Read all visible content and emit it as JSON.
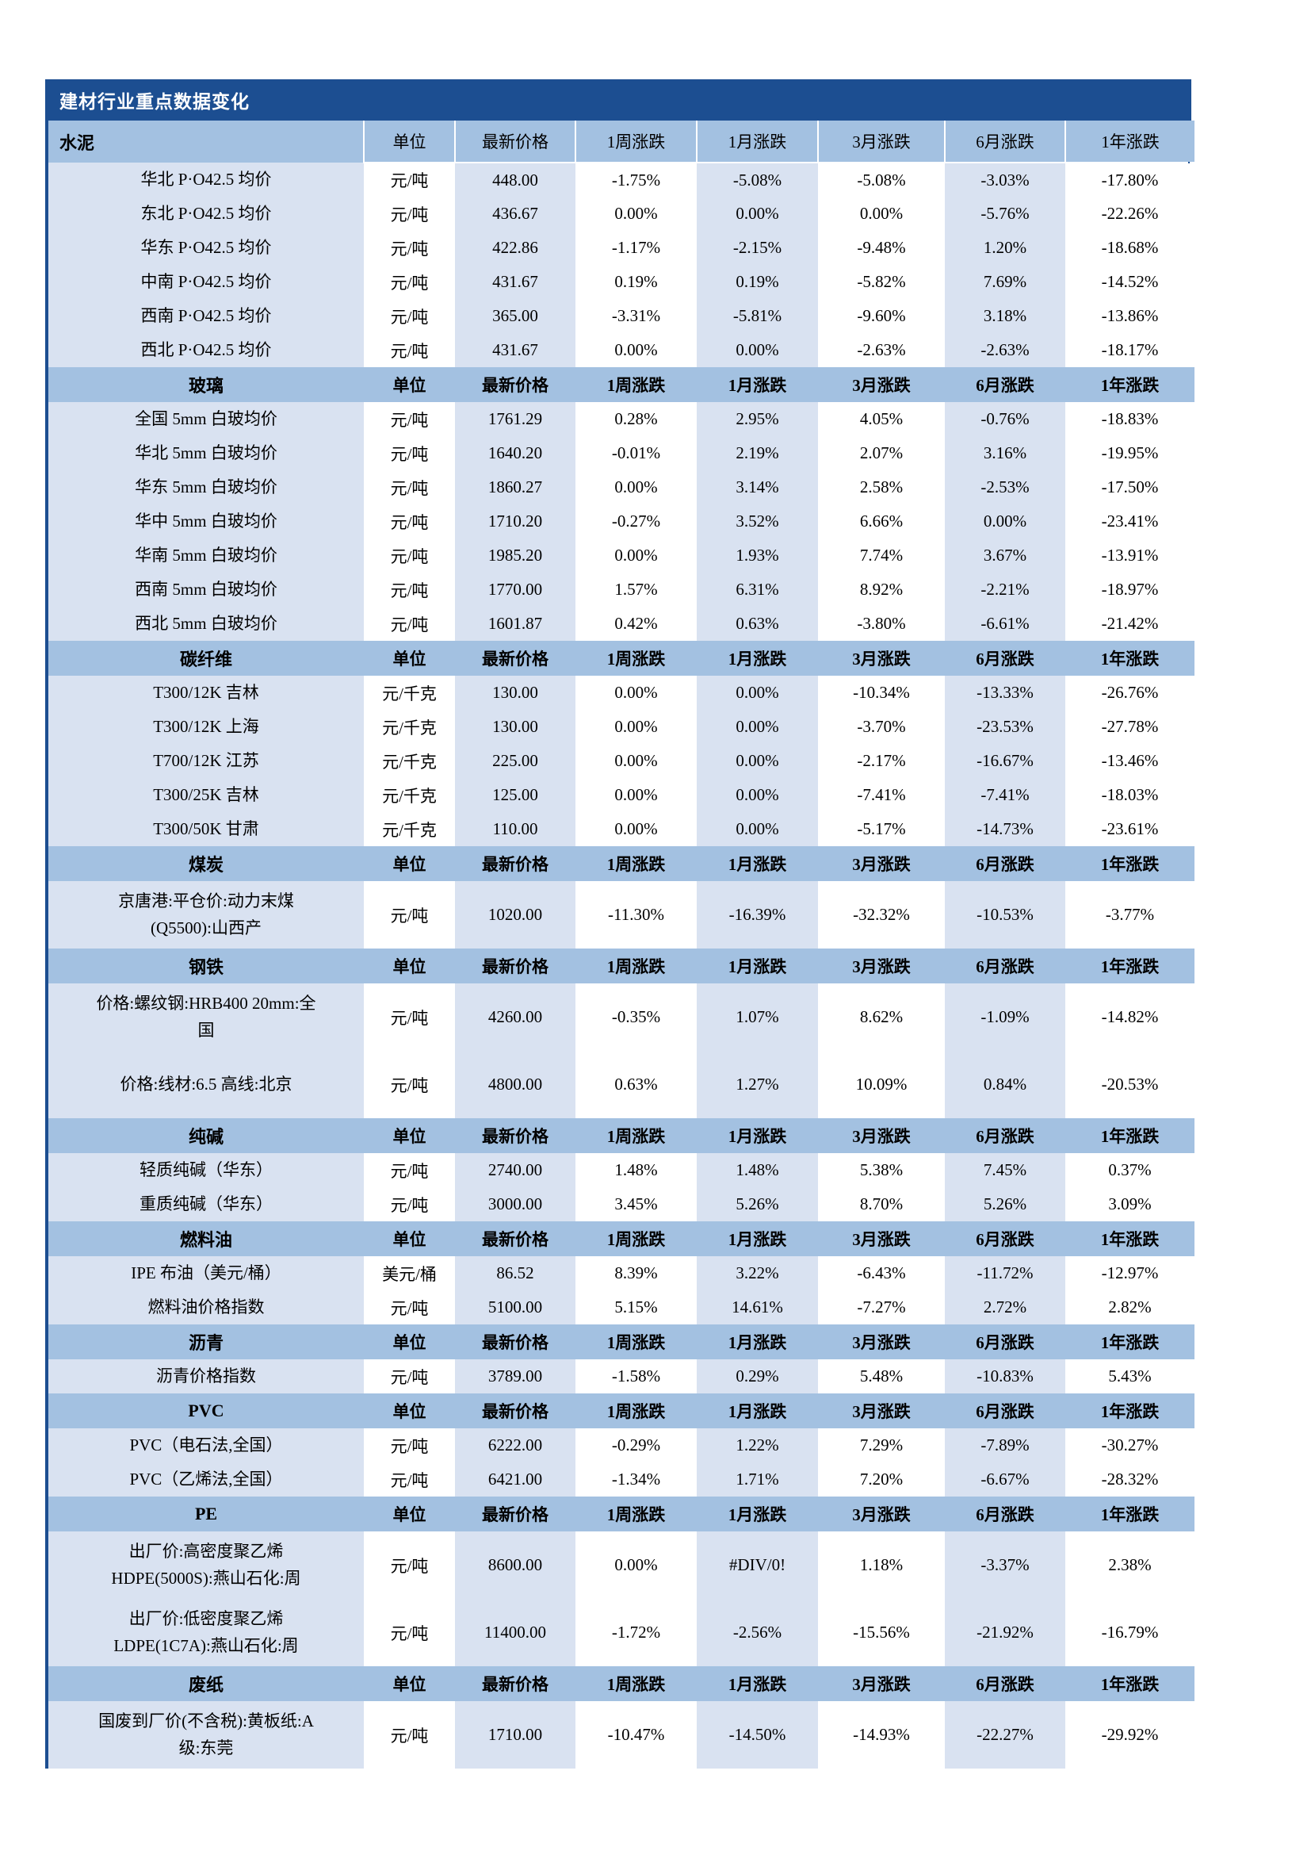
{
  "table": {
    "title": "建材行业重点数据变化",
    "colors": {
      "title_bar": "#1C4E91",
      "section_header_row": "#A3C1E1",
      "cell_light_blue": "#D9E2F1",
      "cell_white": "#FFFFFF",
      "side_border": "#1C4E91",
      "text": "#000000",
      "title_text": "#FFFFFF"
    },
    "col_headers": [
      "单位",
      "最新价格",
      "1周涨跌",
      "1月涨跌",
      "3月涨跌",
      "6月涨跌",
      "1年涨跌"
    ],
    "sections": [
      {
        "name": "水泥",
        "rows": [
          {
            "name": "华北 P·O42.5 均价",
            "unit": "元/吨",
            "price": "448.00",
            "w1": "-1.75%",
            "m1": "-5.08%",
            "m3": "-5.08%",
            "m6": "-3.03%",
            "y1": "-17.80%"
          },
          {
            "name": "东北 P·O42.5 均价",
            "unit": "元/吨",
            "price": "436.67",
            "w1": "0.00%",
            "m1": "0.00%",
            "m3": "0.00%",
            "m6": "-5.76%",
            "y1": "-22.26%"
          },
          {
            "name": "华东 P·O42.5 均价",
            "unit": "元/吨",
            "price": "422.86",
            "w1": "-1.17%",
            "m1": "-2.15%",
            "m3": "-9.48%",
            "m6": "1.20%",
            "y1": "-18.68%"
          },
          {
            "name": "中南 P·O42.5 均价",
            "unit": "元/吨",
            "price": "431.67",
            "w1": "0.19%",
            "m1": "0.19%",
            "m3": "-5.82%",
            "m6": "7.69%",
            "y1": "-14.52%"
          },
          {
            "name": "西南 P·O42.5 均价",
            "unit": "元/吨",
            "price": "365.00",
            "w1": "-3.31%",
            "m1": "-5.81%",
            "m3": "-9.60%",
            "m6": "3.18%",
            "y1": "-13.86%"
          },
          {
            "name": "西北 P·O42.5 均价",
            "unit": "元/吨",
            "price": "431.67",
            "w1": "0.00%",
            "m1": "0.00%",
            "m3": "-2.63%",
            "m6": "-2.63%",
            "y1": "-18.17%"
          }
        ]
      },
      {
        "name": "玻璃",
        "rows": [
          {
            "name": "全国 5mm 白玻均价",
            "unit": "元/吨",
            "price": "1761.29",
            "w1": "0.28%",
            "m1": "2.95%",
            "m3": "4.05%",
            "m6": "-0.76%",
            "y1": "-18.83%"
          },
          {
            "name": "华北 5mm 白玻均价",
            "unit": "元/吨",
            "price": "1640.20",
            "w1": "-0.01%",
            "m1": "2.19%",
            "m3": "2.07%",
            "m6": "3.16%",
            "y1": "-19.95%"
          },
          {
            "name": "华东 5mm 白玻均价",
            "unit": "元/吨",
            "price": "1860.27",
            "w1": "0.00%",
            "m1": "3.14%",
            "m3": "2.58%",
            "m6": "-2.53%",
            "y1": "-17.50%"
          },
          {
            "name": "华中 5mm 白玻均价",
            "unit": "元/吨",
            "price": "1710.20",
            "w1": "-0.27%",
            "m1": "3.52%",
            "m3": "6.66%",
            "m6": "0.00%",
            "y1": "-23.41%"
          },
          {
            "name": "华南 5mm 白玻均价",
            "unit": "元/吨",
            "price": "1985.20",
            "w1": "0.00%",
            "m1": "1.93%",
            "m3": "7.74%",
            "m6": "3.67%",
            "y1": "-13.91%"
          },
          {
            "name": "西南 5mm 白玻均价",
            "unit": "元/吨",
            "price": "1770.00",
            "w1": "1.57%",
            "m1": "6.31%",
            "m3": "8.92%",
            "m6": "-2.21%",
            "y1": "-18.97%"
          },
          {
            "name": "西北 5mm 白玻均价",
            "unit": "元/吨",
            "price": "1601.87",
            "w1": "0.42%",
            "m1": "0.63%",
            "m3": "-3.80%",
            "m6": "-6.61%",
            "y1": "-21.42%"
          }
        ]
      },
      {
        "name": "碳纤维",
        "rows": [
          {
            "name": "T300/12K 吉林",
            "unit": "元/千克",
            "price": "130.00",
            "w1": "0.00%",
            "m1": "0.00%",
            "m3": "-10.34%",
            "m6": "-13.33%",
            "y1": "-26.76%"
          },
          {
            "name": "T300/12K 上海",
            "unit": "元/千克",
            "price": "130.00",
            "w1": "0.00%",
            "m1": "0.00%",
            "m3": "-3.70%",
            "m6": "-23.53%",
            "y1": "-27.78%"
          },
          {
            "name": "T700/12K 江苏",
            "unit": "元/千克",
            "price": "225.00",
            "w1": "0.00%",
            "m1": "0.00%",
            "m3": "-2.17%",
            "m6": "-16.67%",
            "y1": "-13.46%"
          },
          {
            "name": "T300/25K 吉林",
            "unit": "元/千克",
            "price": "125.00",
            "w1": "0.00%",
            "m1": "0.00%",
            "m3": "-7.41%",
            "m6": "-7.41%",
            "y1": "-18.03%"
          },
          {
            "name": "T300/50K 甘肃",
            "unit": "元/千克",
            "price": "110.00",
            "w1": "0.00%",
            "m1": "0.00%",
            "m3": "-5.17%",
            "m6": "-14.73%",
            "y1": "-23.61%"
          }
        ]
      },
      {
        "name": "煤炭",
        "rows": [
          {
            "name": "京唐港:平仓价:动力末煤\n(Q5500):山西产",
            "tall": true,
            "unit": "元/吨",
            "price": "1020.00",
            "w1": "-11.30%",
            "m1": "-16.39%",
            "m3": "-32.32%",
            "m6": "-10.53%",
            "y1": "-3.77%"
          }
        ]
      },
      {
        "name": "钢铁",
        "rows": [
          {
            "name": "价格:螺纹钢:HRB400 20mm:全\n国",
            "tall": true,
            "unit": "元/吨",
            "price": "4260.00",
            "w1": "-0.35%",
            "m1": "1.07%",
            "m3": "8.62%",
            "m6": "-1.09%",
            "y1": "-14.82%"
          },
          {
            "name": "价格:线材:6.5 高线:北京",
            "tall": true,
            "unit": "元/吨",
            "price": "4800.00",
            "w1": "0.63%",
            "m1": "1.27%",
            "m3": "10.09%",
            "m6": "0.84%",
            "y1": "-20.53%"
          }
        ]
      },
      {
        "name": "纯碱",
        "rows": [
          {
            "name": "轻质纯碱（华东）",
            "unit": "元/吨",
            "price": "2740.00",
            "w1": "1.48%",
            "m1": "1.48%",
            "m3": "5.38%",
            "m6": "7.45%",
            "y1": "0.37%"
          },
          {
            "name": "重质纯碱（华东）",
            "unit": "元/吨",
            "price": "3000.00",
            "w1": "3.45%",
            "m1": "5.26%",
            "m3": "8.70%",
            "m6": "5.26%",
            "y1": "3.09%"
          }
        ]
      },
      {
        "name": "燃料油",
        "rows": [
          {
            "name": "IPE 布油（美元/桶）",
            "unit": "美元/桶",
            "price": "86.52",
            "w1": "8.39%",
            "m1": "3.22%",
            "m3": "-6.43%",
            "m6": "-11.72%",
            "y1": "-12.97%"
          },
          {
            "name": "燃料油价格指数",
            "unit": "元/吨",
            "price": "5100.00",
            "w1": "5.15%",
            "m1": "14.61%",
            "m3": "-7.27%",
            "m6": "2.72%",
            "y1": "2.82%"
          }
        ]
      },
      {
        "name": "沥青",
        "rows": [
          {
            "name": "沥青价格指数",
            "unit": "元/吨",
            "price": "3789.00",
            "w1": "-1.58%",
            "m1": "0.29%",
            "m3": "5.48%",
            "m6": "-10.83%",
            "y1": "5.43%"
          }
        ]
      },
      {
        "name": "PVC",
        "rows": [
          {
            "name": "PVC（电石法,全国）",
            "unit": "元/吨",
            "price": "6222.00",
            "w1": "-0.29%",
            "m1": "1.22%",
            "m3": "7.29%",
            "m6": "-7.89%",
            "y1": "-30.27%"
          },
          {
            "name": "PVC（乙烯法,全国）",
            "unit": "元/吨",
            "price": "6421.00",
            "w1": "-1.34%",
            "m1": "1.71%",
            "m3": "7.20%",
            "m6": "-6.67%",
            "y1": "-28.32%"
          }
        ]
      },
      {
        "name": "PE",
        "rows": [
          {
            "name": "出厂价:高密度聚乙烯\nHDPE(5000S):燕山石化:周",
            "tall": true,
            "unit": "元/吨",
            "price": "8600.00",
            "w1": "0.00%",
            "m1": "#DIV/0!",
            "m3": "1.18%",
            "m6": "-3.37%",
            "y1": "2.38%"
          },
          {
            "name": "出厂价:低密度聚乙烯\nLDPE(1C7A):燕山石化:周",
            "tall": true,
            "unit": "元/吨",
            "price": "11400.00",
            "w1": "-1.72%",
            "m1": "-2.56%",
            "m3": "-15.56%",
            "m6": "-21.92%",
            "y1": "-16.79%"
          }
        ]
      },
      {
        "name": "废纸",
        "rows": [
          {
            "name": "国废到厂价(不含税):黄板纸:A\n级:东莞",
            "tall": true,
            "unit": "元/吨",
            "price": "1710.00",
            "w1": "-10.47%",
            "m1": "-14.50%",
            "m3": "-14.93%",
            "m6": "-22.27%",
            "y1": "-29.92%"
          }
        ]
      }
    ]
  }
}
